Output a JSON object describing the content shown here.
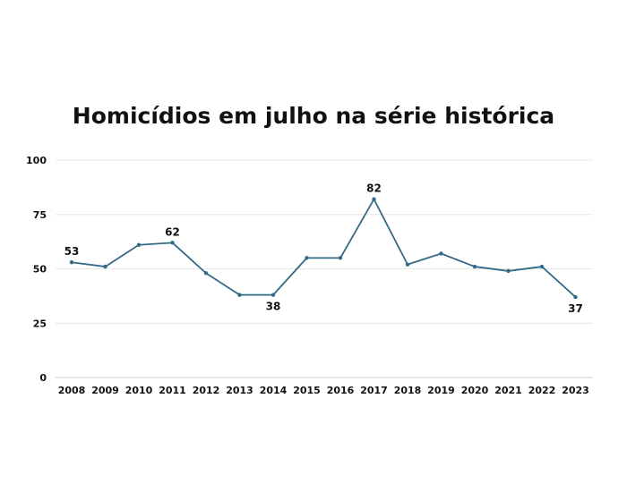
{
  "chart_data": {
    "type": "line",
    "title": "Homicídios em julho na série histórica",
    "xlabel": "",
    "ylabel": "",
    "x": [
      "2008",
      "2009",
      "2010",
      "2011",
      "2012",
      "2013",
      "2014",
      "2015",
      "2016",
      "2017",
      "2018",
      "2019",
      "2020",
      "2021",
      "2022",
      "2023"
    ],
    "series": [
      {
        "values": [
          53,
          51,
          61,
          62,
          48,
          38,
          38,
          55,
          55,
          82,
          52,
          57,
          51,
          49,
          51,
          37
        ]
      }
    ],
    "data_labels": [
      {
        "x": "2008",
        "value": 53,
        "text": "53"
      },
      {
        "x": "2011",
        "value": 62,
        "text": "62"
      },
      {
        "x": "2014",
        "value": 38,
        "text": "38"
      },
      {
        "x": "2017",
        "value": 82,
        "text": "82"
      },
      {
        "x": "2023",
        "value": 37,
        "text": "37"
      }
    ],
    "yticks": [
      0,
      25,
      50,
      75,
      100
    ],
    "ylim": [
      0,
      100
    ],
    "grid": true,
    "legend": "none",
    "colors": {
      "line": "#336b87",
      "grid": "#e6e6e6",
      "axis": "#cccccc",
      "text": "#111111"
    }
  }
}
